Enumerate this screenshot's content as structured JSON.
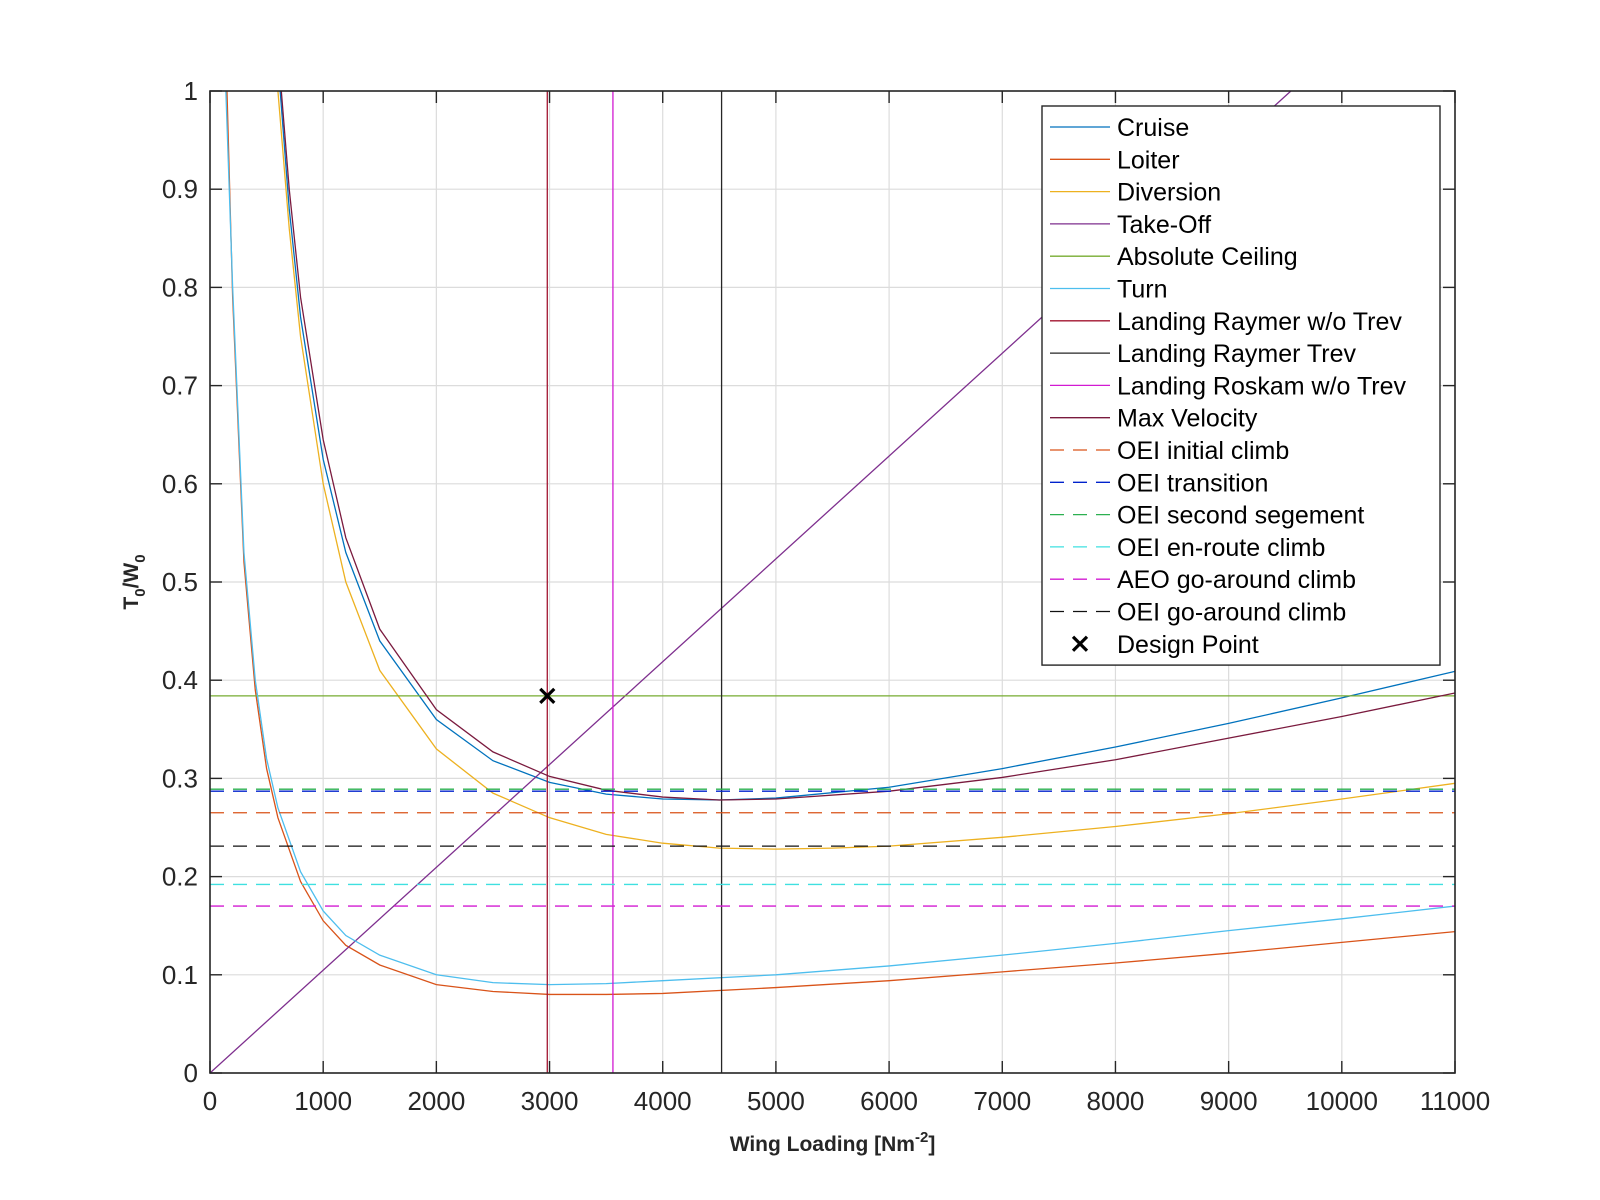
{
  "chart_data": {
    "type": "line",
    "title": "",
    "xlabel": "Wing Loading [Nm",
    "xlabel_sup": "-2",
    "xlabel_suffix": "]",
    "ylabel": "T",
    "ylabel_sub1": "0",
    "ylabel_mid": "/W",
    "ylabel_sub2": "0",
    "xlim": [
      0,
      11000
    ],
    "ylim": [
      0,
      1
    ],
    "xticks": [
      0,
      1000,
      2000,
      3000,
      4000,
      5000,
      6000,
      7000,
      8000,
      9000,
      10000,
      11000
    ],
    "xtick_labels": [
      "0",
      "1000",
      "2000",
      "3000",
      "4000",
      "5000",
      "6000",
      "7000",
      "8000",
      "9000",
      "10000",
      "11000"
    ],
    "yticks": [
      0,
      0.1,
      0.2,
      0.3,
      0.4,
      0.5,
      0.6,
      0.7,
      0.8,
      0.9,
      1
    ],
    "ytick_labels": [
      "0",
      "0.1",
      "0.2",
      "0.3",
      "0.4",
      "0.5",
      "0.6",
      "0.7",
      "0.8",
      "0.9",
      "1"
    ],
    "grid": true,
    "legend_position": "top-right",
    "series": [
      {
        "name": "Cruise",
        "color": "#0072BD",
        "style": "solid",
        "x": [
          620,
          700,
          800,
          1000,
          1200,
          1500,
          2000,
          2500,
          3000,
          3500,
          4000,
          4500,
          5000,
          6000,
          7000,
          8000,
          9000,
          10000,
          11000
        ],
        "y": [
          1.0,
          0.88,
          0.77,
          0.625,
          0.53,
          0.44,
          0.36,
          0.318,
          0.296,
          0.284,
          0.279,
          0.278,
          0.28,
          0.291,
          0.31,
          0.332,
          0.356,
          0.382,
          0.409
        ]
      },
      {
        "name": "Loiter",
        "color": "#D95319",
        "style": "solid",
        "x": [
          150,
          200,
          300,
          400,
          500,
          600,
          800,
          1000,
          1200,
          1500,
          2000,
          2500,
          3000,
          3500,
          4000,
          5000,
          6000,
          7000,
          8000,
          9000,
          10000,
          11000
        ],
        "y": [
          1.0,
          0.79,
          0.52,
          0.39,
          0.31,
          0.26,
          0.195,
          0.155,
          0.13,
          0.11,
          0.09,
          0.083,
          0.08,
          0.08,
          0.081,
          0.087,
          0.094,
          0.103,
          0.112,
          0.122,
          0.133,
          0.144
        ]
      },
      {
        "name": "Diversion",
        "color": "#EDB120",
        "style": "solid",
        "x": [
          600,
          700,
          800,
          1000,
          1200,
          1500,
          2000,
          2500,
          3000,
          3500,
          4000,
          4500,
          5000,
          5500,
          6000,
          7000,
          8000,
          9000,
          10000,
          11000
        ],
        "y": [
          1.0,
          0.86,
          0.75,
          0.6,
          0.5,
          0.41,
          0.33,
          0.285,
          0.26,
          0.243,
          0.234,
          0.229,
          0.228,
          0.229,
          0.231,
          0.24,
          0.251,
          0.264,
          0.279,
          0.295
        ]
      },
      {
        "name": "Take-Off",
        "color": "#7E2F8E",
        "style": "solid",
        "x": [
          0,
          9550
        ],
        "y": [
          0,
          1.0
        ]
      },
      {
        "name": "Absolute Ceiling",
        "color": "#77AC30",
        "style": "solid",
        "x": [
          0,
          11000
        ],
        "y": [
          0.384,
          0.384
        ]
      },
      {
        "name": "Turn",
        "color": "#4DBEEE",
        "style": "solid",
        "x": [
          140,
          200,
          300,
          400,
          500,
          600,
          800,
          1000,
          1200,
          1500,
          2000,
          2500,
          3000,
          3500,
          4000,
          5000,
          6000,
          7000,
          8000,
          9000,
          10000,
          11000
        ],
        "y": [
          1.0,
          0.8,
          0.53,
          0.4,
          0.32,
          0.27,
          0.205,
          0.165,
          0.14,
          0.12,
          0.1,
          0.092,
          0.09,
          0.091,
          0.094,
          0.1,
          0.109,
          0.12,
          0.132,
          0.145,
          0.157,
          0.17
        ]
      },
      {
        "name": "Landing Raymer w/o Trev",
        "color": "#A2142F",
        "style": "solid",
        "x": [
          2980,
          2980
        ],
        "y": [
          0,
          1
        ]
      },
      {
        "name": "Landing Raymer Trev",
        "color": "#262626",
        "style": "solid",
        "x": [
          4520,
          4520
        ],
        "y": [
          0,
          1
        ]
      },
      {
        "name": "Landing Roskam w/o Trev",
        "color": "#D21AD2",
        "style": "solid",
        "x": [
          3560,
          3560
        ],
        "y": [
          0,
          1
        ]
      },
      {
        "name": "Max Velocity",
        "color": "#7A1A3E",
        "style": "solid",
        "x": [
          630,
          700,
          800,
          1000,
          1200,
          1500,
          2000,
          2500,
          3000,
          3500,
          4000,
          4500,
          5000,
          6000,
          7000,
          8000,
          9000,
          10000,
          11000
        ],
        "y": [
          1.0,
          0.9,
          0.79,
          0.645,
          0.545,
          0.452,
          0.37,
          0.327,
          0.302,
          0.288,
          0.281,
          0.278,
          0.279,
          0.287,
          0.301,
          0.319,
          0.341,
          0.363,
          0.387
        ]
      },
      {
        "name": "OEI initial climb",
        "color": "#D95319",
        "style": "dashed",
        "x": [
          0,
          11000
        ],
        "y": [
          0.265,
          0.265
        ]
      },
      {
        "name": "OEI transition",
        "color": "#0022CC",
        "style": "dashed",
        "x": [
          0,
          11000
        ],
        "y": [
          0.287,
          0.287
        ]
      },
      {
        "name": "OEI second segement",
        "color": "#2CB050",
        "style": "dashed",
        "x": [
          0,
          11000
        ],
        "y": [
          0.289,
          0.289
        ]
      },
      {
        "name": "OEI en-route climb",
        "color": "#3FE0E0",
        "style": "dashed",
        "x": [
          0,
          11000
        ],
        "y": [
          0.192,
          0.192
        ]
      },
      {
        "name": "AEO go-around climb",
        "color": "#D21AD2",
        "style": "dashed",
        "x": [
          0,
          11000
        ],
        "y": [
          0.17,
          0.17
        ]
      },
      {
        "name": "OEI go-around climb",
        "color": "#111111",
        "style": "dashed",
        "x": [
          0,
          11000
        ],
        "y": [
          0.231,
          0.231
        ]
      }
    ],
    "design_point": {
      "name": "Design Point",
      "x": 2980,
      "y": 0.384,
      "marker": "x",
      "color": "#000000"
    }
  }
}
